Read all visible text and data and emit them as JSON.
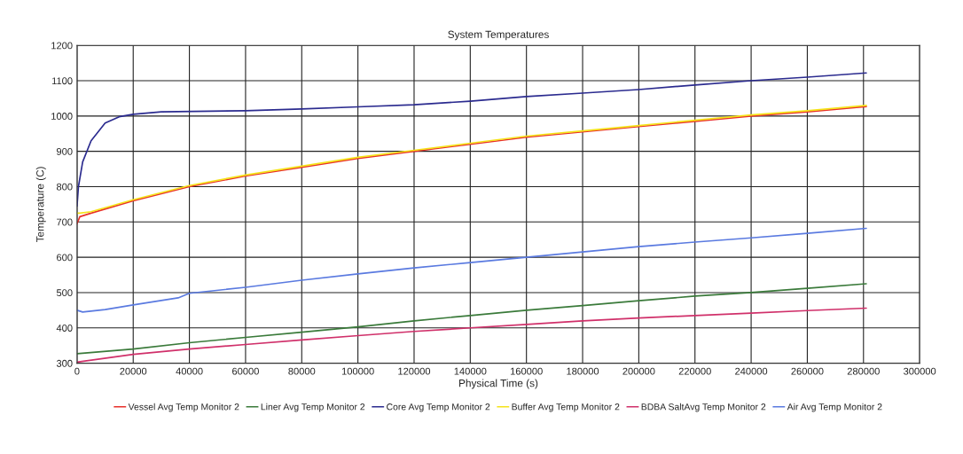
{
  "chart_data": {
    "type": "line",
    "title": "System Temperatures",
    "xlabel": "Physical Time (s)",
    "ylabel": "Temperature (C)",
    "xlim": [
      0,
      300000
    ],
    "xticks": [
      0,
      20000,
      40000,
      60000,
      80000,
      100000,
      120000,
      140000,
      160000,
      180000,
      200000,
      220000,
      240000,
      260000,
      280000,
      300000
    ],
    "ylim": [
      300,
      1200
    ],
    "yticks": [
      300,
      400,
      500,
      600,
      700,
      800,
      900,
      1000,
      1100,
      1200
    ],
    "grid": true,
    "legend": "bottom",
    "marker": "none",
    "line_style": "solid",
    "series": [
      {
        "name": "Vessel Avg Temp Monitor 2",
        "color": "#e8302a",
        "x": [
          0,
          1000,
          5000,
          20000,
          40000,
          60000,
          80000,
          100000,
          120000,
          140000,
          160000,
          180000,
          200000,
          220000,
          240000,
          260000,
          281000
        ],
        "values": [
          695,
          715,
          725,
          760,
          800,
          830,
          855,
          880,
          900,
          920,
          940,
          955,
          970,
          985,
          1000,
          1012,
          1027
        ]
      },
      {
        "name": "Liner Avg Temp Monitor 2",
        "color": "#3a7a3a",
        "x": [
          0,
          20000,
          40000,
          60000,
          80000,
          100000,
          120000,
          140000,
          160000,
          180000,
          200000,
          220000,
          240000,
          260000,
          281000
        ],
        "values": [
          327,
          340,
          358,
          373,
          388,
          403,
          420,
          435,
          450,
          463,
          477,
          490,
          500,
          512,
          525
        ]
      },
      {
        "name": "Core Avg Temp Monitor 2",
        "color": "#2b2b8f",
        "x": [
          0,
          500,
          2000,
          5000,
          10000,
          15000,
          20000,
          30000,
          60000,
          80000,
          100000,
          120000,
          140000,
          160000,
          180000,
          200000,
          220000,
          240000,
          260000,
          281000
        ],
        "values": [
          745,
          800,
          870,
          930,
          980,
          998,
          1005,
          1012,
          1015,
          1020,
          1026,
          1032,
          1042,
          1055,
          1065,
          1075,
          1088,
          1100,
          1110,
          1122
        ]
      },
      {
        "name": "Buffer Avg Temp Monitor 2",
        "color": "#f5e31a",
        "x": [
          0,
          1000,
          5000,
          20000,
          40000,
          60000,
          80000,
          100000,
          120000,
          140000,
          160000,
          180000,
          200000,
          220000,
          240000,
          260000,
          281000
        ],
        "values": [
          725,
          725,
          729,
          763,
          803,
          833,
          858,
          883,
          903,
          923,
          943,
          958,
          973,
          988,
          1003,
          1015,
          1030
        ]
      },
      {
        "name": "BDBA SaltAvg Temp Monitor 2",
        "color": "#d0306a",
        "x": [
          0,
          20000,
          40000,
          60000,
          80000,
          100000,
          120000,
          140000,
          160000,
          180000,
          200000,
          220000,
          240000,
          260000,
          281000
        ],
        "values": [
          303,
          325,
          340,
          353,
          366,
          378,
          390,
          400,
          410,
          420,
          428,
          435,
          442,
          449,
          456
        ]
      },
      {
        "name": "Air Avg Temp Monitor 2",
        "color": "#5a7ae0",
        "x": [
          0,
          2000,
          10000,
          20000,
          36000,
          40000,
          60000,
          80000,
          100000,
          120000,
          140000,
          160000,
          180000,
          200000,
          220000,
          240000,
          260000,
          281000
        ],
        "values": [
          450,
          445,
          452,
          465,
          485,
          498,
          515,
          535,
          553,
          570,
          585,
          600,
          615,
          630,
          643,
          655,
          668,
          682
        ]
      }
    ]
  }
}
